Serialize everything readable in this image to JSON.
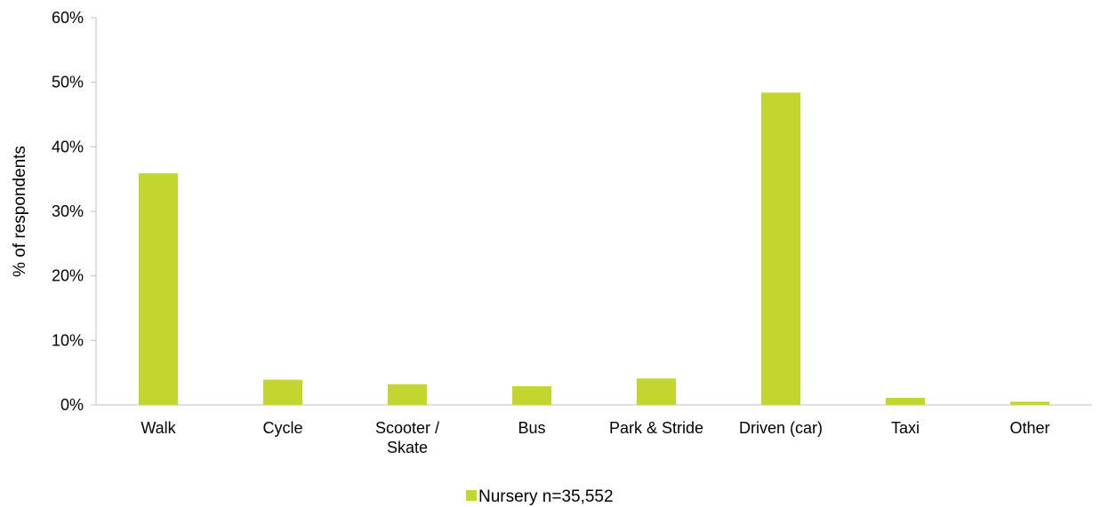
{
  "chart_data": {
    "type": "bar",
    "title": "",
    "xlabel": "",
    "ylabel": "% of respondents",
    "categories": [
      "Walk",
      "Cycle",
      "Scooter / Skate",
      "Bus",
      "Park & Stride",
      "Driven (car)",
      "Taxi",
      "Other"
    ],
    "category_lines": [
      [
        "Walk"
      ],
      [
        "Cycle"
      ],
      [
        "Scooter /",
        "Skate"
      ],
      [
        "Bus"
      ],
      [
        "Park & Stride"
      ],
      [
        "Driven (car)"
      ],
      [
        "Taxi"
      ],
      [
        "Other"
      ]
    ],
    "series": [
      {
        "name": "Nursery n=35,552",
        "color": "#c2d62f",
        "values": [
          35.9,
          3.9,
          3.2,
          2.9,
          4.1,
          48.4,
          1.1,
          0.5
        ]
      }
    ],
    "ylim": [
      0,
      60
    ],
    "yticks": [
      0,
      10,
      20,
      30,
      40,
      50,
      60
    ],
    "ytick_format": "percent",
    "grid": false,
    "legend_position": "bottom"
  }
}
